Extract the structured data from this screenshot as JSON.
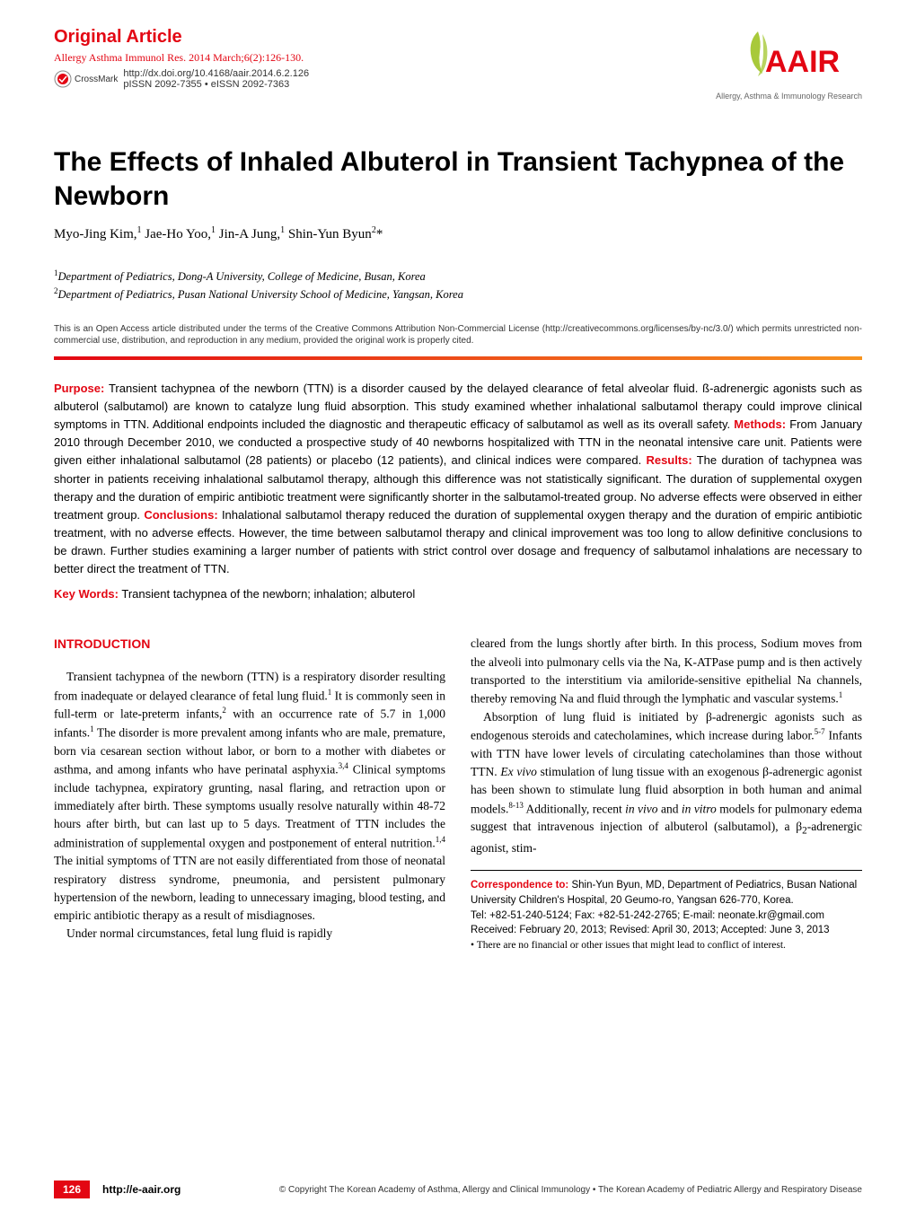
{
  "header": {
    "article_type": "Original Article",
    "journal_citation": "Allergy Asthma Immunol Res. 2014 March;6(2):126-130.",
    "doi": "http://dx.doi.org/10.4168/aair.2014.6.2.126",
    "issn": "pISSN 2092-7355 • eISSN 2092-7363",
    "crossmark_label": "CrossMark",
    "logo_text": "AAIR",
    "logo_caption": "Allergy, Asthma & Immunology Research",
    "colors": {
      "brand_red": "#e30613",
      "brand_orange": "#f7931e",
      "text_black": "#000000",
      "text_gray": "#333333",
      "background": "#ffffff"
    }
  },
  "title": "The Effects of Inhaled Albuterol in Transient Tachypnea of the Newborn",
  "authors_html": "Myo-Jing Kim,<sup>1</sup> Jae-Ho Yoo,<sup>1</sup> Jin-A Jung,<sup>1</sup> Shin-Yun Byun<sup>2</sup>*",
  "affiliations": [
    {
      "num": "1",
      "text": "Department of Pediatrics, Dong-A University, College of Medicine, Busan, Korea"
    },
    {
      "num": "2",
      "text": "Department of Pediatrics, Pusan National University School of Medicine, Yangsan, Korea"
    }
  ],
  "license": "This is an Open Access article distributed under the terms of the Creative Commons Attribution Non-Commercial License (http://creativecommons.org/licenses/by-nc/3.0/) which permits unrestricted non-commercial use, distribution, and reproduction in any medium, provided the original work is properly cited.",
  "abstract": {
    "purpose_label": "Purpose:",
    "purpose": " Transient tachypnea of the newborn (TTN) is a disorder caused by the delayed clearance of fetal alveolar fluid. ß-adrenergic agonists such as albuterol (salbutamol) are known to catalyze lung fluid absorption. This study examined whether inhalational salbutamol therapy could improve clinical symptoms in TTN. Additional endpoints included the diagnostic and therapeutic efficacy of salbutamol as well as its overall safety. ",
    "methods_label": "Methods:",
    "methods": " From January 2010 through December 2010, we conducted a prospective study of 40 newborns hospitalized with TTN in the neonatal intensive care unit. Patients were given either inhalational salbutamol (28 patients) or placebo (12 patients), and clinical indices were compared. ",
    "results_label": "Results:",
    "results": " The duration of tachypnea was shorter in patients receiving inhalational salbutamol therapy, although this difference was not statistically significant. The duration of supplemental oxygen therapy and the duration of empiric antibiotic treatment were significantly shorter in the salbutamol-treated group. No adverse effects were observed in either treatment group. ",
    "conclusions_label": "Conclusions:",
    "conclusions": " Inhalational salbutamol therapy reduced the duration of supplemental oxygen therapy and the duration of empiric antibiotic treatment, with no adverse effects. However, the time between salbutamol therapy and clinical improvement was too long to allow definitive conclusions to be drawn. Further studies examining a larger number of patients with strict control over dosage and frequency of salbutamol inhalations are necessary to better direct the treatment of TTN."
  },
  "keywords": {
    "label": "Key Words:",
    "text": "  Transient tachypnea of the newborn; inhalation; albuterol"
  },
  "intro_heading": "INTRODUCTION",
  "left_col": {
    "p1": "Transient tachypnea of the newborn (TTN) is a respiratory disorder resulting from inadequate or delayed clearance of fetal lung fluid.<sup>1</sup> It is commonly seen in full-term or late-preterm infants,<sup>2</sup> with an occurrence rate of 5.7 in 1,000 infants.<sup>1</sup> The disorder is more prevalent among infants who are male, premature, born via cesarean section without labor, or born to a mother with diabetes or asthma, and among infants who have perinatal asphyxia.<sup>3,4</sup> Clinical symptoms include tachypnea, expiratory grunting, nasal flaring, and retraction upon or immediately after birth. These symptoms usually resolve naturally within 48-72 hours after birth, but can last up to 5 days. Treatment of TTN includes the administration of supplemental oxygen and postponement of enteral nutrition.<sup>1,4</sup> The initial symptoms of TTN are not easily differentiated from those of neonatal respiratory distress syndrome, pneumonia, and persistent pulmonary hypertension of the newborn, leading to unnecessary imaging, blood testing, and empiric antibiotic therapy as a result of misdiagnoses.",
    "p2": "Under normal circumstances, fetal lung fluid is rapidly"
  },
  "right_col": {
    "p1": "cleared from the lungs shortly after birth. In this process, Sodium moves from the alveoli into pulmonary cells via the Na, K-ATPase pump and is then actively transported to the interstitium via amiloride-sensitive epithelial Na channels, thereby removing Na and fluid through the lymphatic and vascular systems.<sup>1</sup>",
    "p2": "Absorption of lung fluid is initiated by β-adrenergic agonists such as endogenous steroids and catecholamines, which increase during labor.<sup>5-7</sup> Infants with TTN have lower levels of circulating catecholamines than those without TTN. <i>Ex vivo</i> stimulation of lung tissue with an exogenous β-adrenergic agonist has been shown to stimulate lung fluid absorption in both human and animal models.<sup>8-13</sup> Additionally, recent <i>in vivo</i> and <i>in vitro</i> models for pulmonary edema suggest that intravenous injection of albuterol (salbutamol), a β<sub>2</sub>-adrenergic agonist, stim-"
  },
  "correspondence": {
    "label": "Correspondence to:",
    "name_line": "  Shin-Yun Byun, MD, Department of Pediatrics, Busan National University Children's Hospital, 20 Geumo-ro, Yangsan 626-770, Korea.",
    "contact_line": "Tel: +82-51-240-5124; Fax: +82-51-242-2765; E-mail: neonate.kr@gmail.com",
    "dates_line": "Received: February 20, 2013; Revised: April 30, 2013; Accepted: June 3, 2013",
    "coi": "• There are no financial or other issues that might lead to conflict of interest."
  },
  "footer": {
    "page_number": "126",
    "url": "http://e-aair.org",
    "copyright": "© Copyright The Korean Academy of Asthma, Allergy and Clinical Immunology • The Korean Academy of Pediatric Allergy and Respiratory Disease"
  }
}
